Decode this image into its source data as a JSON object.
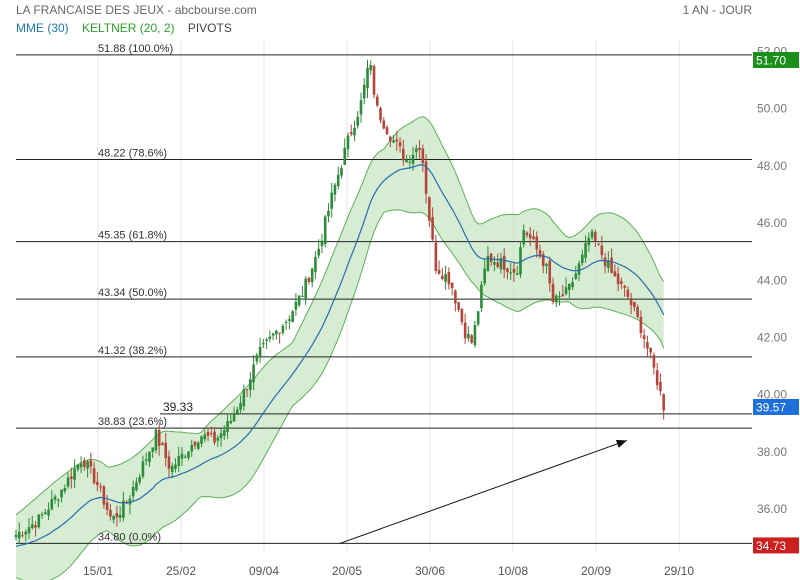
{
  "header": {
    "title": "LA FRANCAISE DES JEUX - abcbourse.com",
    "period": "1 AN - JOUR"
  },
  "legend": [
    {
      "label": "MME (30)",
      "color": "#1f77b4"
    },
    {
      "label": "KELTNER (20, 2)",
      "color": "#2ca02c"
    },
    {
      "label": "PIVOTS",
      "color": "#444444"
    }
  ],
  "colors": {
    "up": "#2e8b3a",
    "down": "#b5453a",
    "band_fill": "#c8e6c4",
    "band_line": "#5fae5a",
    "mme_line": "#2b6cb0",
    "last_badge": "#1e6fd9",
    "high_badge": "#1a8f1a",
    "low_badge": "#cc1f1f"
  },
  "chart_data": {
    "type": "candlestick",
    "ylim": [
      34.5,
      52.4
    ],
    "yticks": [
      "36.00",
      "38.00",
      "40.00",
      "42.00",
      "44.00",
      "46.00",
      "48.00",
      "50.00",
      "52.00"
    ],
    "xticks": [
      "15/01",
      "25/02",
      "09/04",
      "20/05",
      "30/06",
      "10/08",
      "20/09",
      "29/10"
    ],
    "fib_levels": [
      {
        "value": 51.88,
        "label": "51.88 (100.0%)"
      },
      {
        "value": 48.22,
        "label": "48.22 (78.6%)"
      },
      {
        "value": 45.35,
        "label": "45.35 (61.8%)"
      },
      {
        "value": 43.34,
        "label": "43.34 (50.0%)"
      },
      {
        "value": 41.32,
        "label": "41.32 (38.2%)"
      },
      {
        "value": 38.83,
        "label": "38.83 (23.6%)"
      },
      {
        "value": 34.8,
        "label": "34.80 (0.0%)"
      }
    ],
    "extra_level": {
      "value": 39.33,
      "label": "39.33"
    },
    "price_badges": [
      {
        "value": 51.7,
        "label": "51.70",
        "kind": "high"
      },
      {
        "value": 39.57,
        "label": "39.57",
        "kind": "last"
      },
      {
        "value": 34.73,
        "label": "34.73",
        "kind": "low"
      }
    ],
    "trendline": {
      "from": [
        0.44,
        34.8
      ],
      "to": [
        0.83,
        38.4
      ]
    },
    "trend_anchors": [
      [
        0.0,
        35.1
      ],
      [
        0.03,
        35.6
      ],
      [
        0.06,
        36.6
      ],
      [
        0.09,
        37.8
      ],
      [
        0.11,
        36.9
      ],
      [
        0.13,
        35.6
      ],
      [
        0.15,
        36.2
      ],
      [
        0.17,
        37.4
      ],
      [
        0.19,
        38.6
      ],
      [
        0.21,
        37.4
      ],
      [
        0.23,
        38.0
      ],
      [
        0.25,
        38.6
      ],
      [
        0.27,
        38.4
      ],
      [
        0.29,
        39.0
      ],
      [
        0.31,
        40.1
      ],
      [
        0.33,
        41.4
      ],
      [
        0.35,
        42.1
      ],
      [
        0.37,
        42.7
      ],
      [
        0.39,
        43.6
      ],
      [
        0.41,
        45.0
      ],
      [
        0.43,
        47.0
      ],
      [
        0.45,
        48.8
      ],
      [
        0.47,
        50.3
      ],
      [
        0.48,
        51.7
      ],
      [
        0.49,
        50.0
      ],
      [
        0.51,
        49.0
      ],
      [
        0.53,
        48.2
      ],
      [
        0.55,
        48.8
      ],
      [
        0.56,
        46.5
      ],
      [
        0.57,
        44.5
      ],
      [
        0.59,
        44.0
      ],
      [
        0.61,
        42.2
      ],
      [
        0.62,
        41.8
      ],
      [
        0.64,
        44.8
      ],
      [
        0.66,
        44.6
      ],
      [
        0.68,
        44.3
      ],
      [
        0.69,
        45.8
      ],
      [
        0.7,
        45.4
      ],
      [
        0.72,
        44.5
      ],
      [
        0.73,
        43.2
      ],
      [
        0.75,
        43.6
      ],
      [
        0.77,
        44.8
      ],
      [
        0.78,
        45.6
      ],
      [
        0.79,
        45.2
      ],
      [
        0.81,
        44.2
      ],
      [
        0.83,
        43.5
      ],
      [
        0.85,
        42.3
      ],
      [
        0.87,
        40.6
      ],
      [
        0.88,
        39.6
      ]
    ]
  }
}
